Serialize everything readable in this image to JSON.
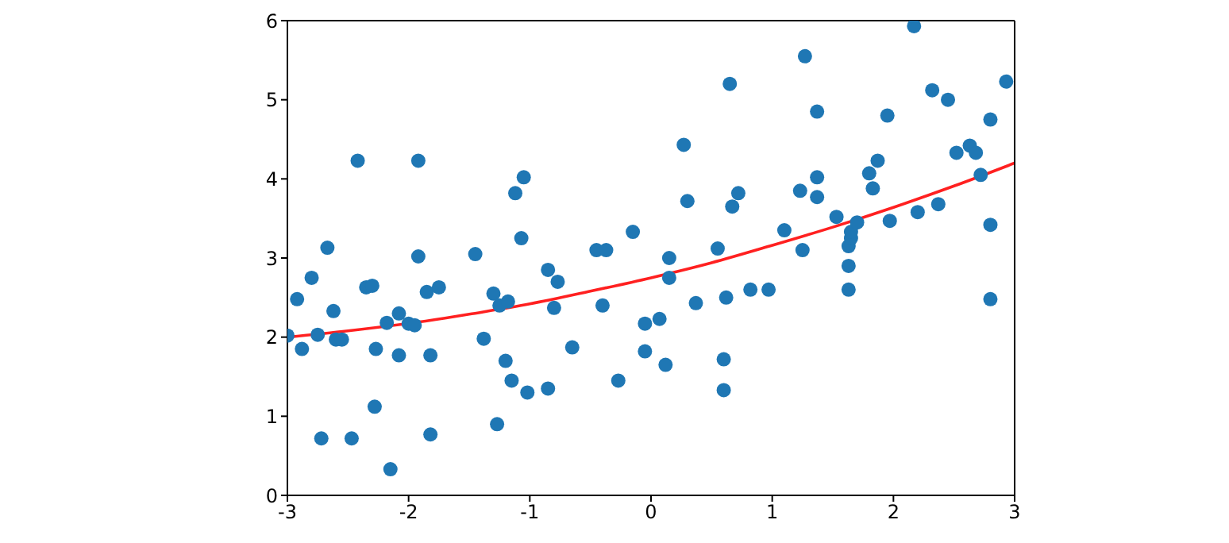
{
  "chart_data": {
    "type": "scatter",
    "xlim": [
      -3,
      3
    ],
    "xticks": [
      -3,
      -2,
      -1,
      0,
      1,
      2,
      3
    ],
    "ylim": [
      0,
      6
    ],
    "yticks": [
      0,
      1,
      2,
      3,
      4,
      5,
      6
    ],
    "grid": false,
    "marker": "circle",
    "series": [
      {
        "type": "scatter",
        "color": "#1f77b4",
        "x": [
          -3,
          -2.92,
          -2.88,
          -2.8,
          -2.75,
          -2.72,
          -2.67,
          -2.62,
          -2.6,
          -2.55,
          -2.47,
          -2.42,
          -2.35,
          -2.3,
          -2.28,
          -2.27,
          -2.18,
          -2.15,
          -2.08,
          -2.08,
          -2.0,
          -1.95,
          -1.92,
          -1.92,
          -1.85,
          -1.82,
          -1.82,
          -1.75,
          -1.45,
          -1.38,
          -1.3,
          -1.27,
          -1.25,
          -1.2,
          -1.18,
          -1.15,
          -1.12,
          -1.05,
          -1.07,
          -1.02,
          -0.85,
          -0.85,
          -0.8,
          -0.77,
          -0.65,
          -0.45,
          -0.4,
          -0.37,
          -0.27,
          -0.15,
          -0.05,
          -0.05,
          0.07,
          0.12,
          0.15,
          0.15,
          0.27,
          0.3,
          0.37,
          0.55,
          0.6,
          0.6,
          0.62,
          0.65,
          0.67,
          0.72,
          0.82,
          0.97,
          1.1,
          1.23,
          1.25,
          1.27,
          1.37,
          1.37,
          1.37,
          1.53,
          1.63,
          1.63,
          1.63,
          1.65,
          1.65,
          1.7,
          1.8,
          1.83,
          1.87,
          1.95,
          1.97,
          2.17,
          2.2,
          2.32,
          2.37,
          2.45,
          2.52,
          2.63,
          2.68,
          2.72,
          2.8,
          2.8,
          2.8,
          2.93
        ],
        "values": [
          2.02,
          2.48,
          1.85,
          2.75,
          2.03,
          0.72,
          3.13,
          2.33,
          1.97,
          1.97,
          0.72,
          4.23,
          2.63,
          2.65,
          1.12,
          1.85,
          2.18,
          0.33,
          2.3,
          1.77,
          2.17,
          2.15,
          4.23,
          3.02,
          2.57,
          1.77,
          0.77,
          2.63,
          3.05,
          1.98,
          2.55,
          0.9,
          2.4,
          1.7,
          2.45,
          1.45,
          3.82,
          4.02,
          3.25,
          1.3,
          1.35,
          2.85,
          2.37,
          2.7,
          1.87,
          3.1,
          2.4,
          3.1,
          1.45,
          3.33,
          1.82,
          2.17,
          2.23,
          1.65,
          2.75,
          3.0,
          4.43,
          3.72,
          2.43,
          3.12,
          1.72,
          1.33,
          2.5,
          5.2,
          3.65,
          3.82,
          2.6,
          2.6,
          3.35,
          3.85,
          3.1,
          5.55,
          4.85,
          4.02,
          3.77,
          3.52,
          3.15,
          2.9,
          2.6,
          3.25,
          3.33,
          3.45,
          4.07,
          3.88,
          4.23,
          4.8,
          3.47,
          5.93,
          3.58,
          5.12,
          3.68,
          5.0,
          4.33,
          4.42,
          4.33,
          4.05,
          4.75,
          3.42,
          2.48,
          5.23
        ]
      },
      {
        "type": "line",
        "color": "#ff2020",
        "marker": "none",
        "line_style": "solid",
        "x": [
          -3,
          -2.5,
          -1.7,
          -1.5,
          -1,
          -0.5,
          0,
          0.5,
          1,
          1.5,
          2,
          2.5,
          3
        ],
        "values": [
          2.0,
          2.08,
          2.24,
          2.29,
          2.42,
          2.58,
          2.75,
          2.94,
          3.16,
          3.39,
          3.64,
          3.91,
          4.2
        ]
      }
    ]
  }
}
